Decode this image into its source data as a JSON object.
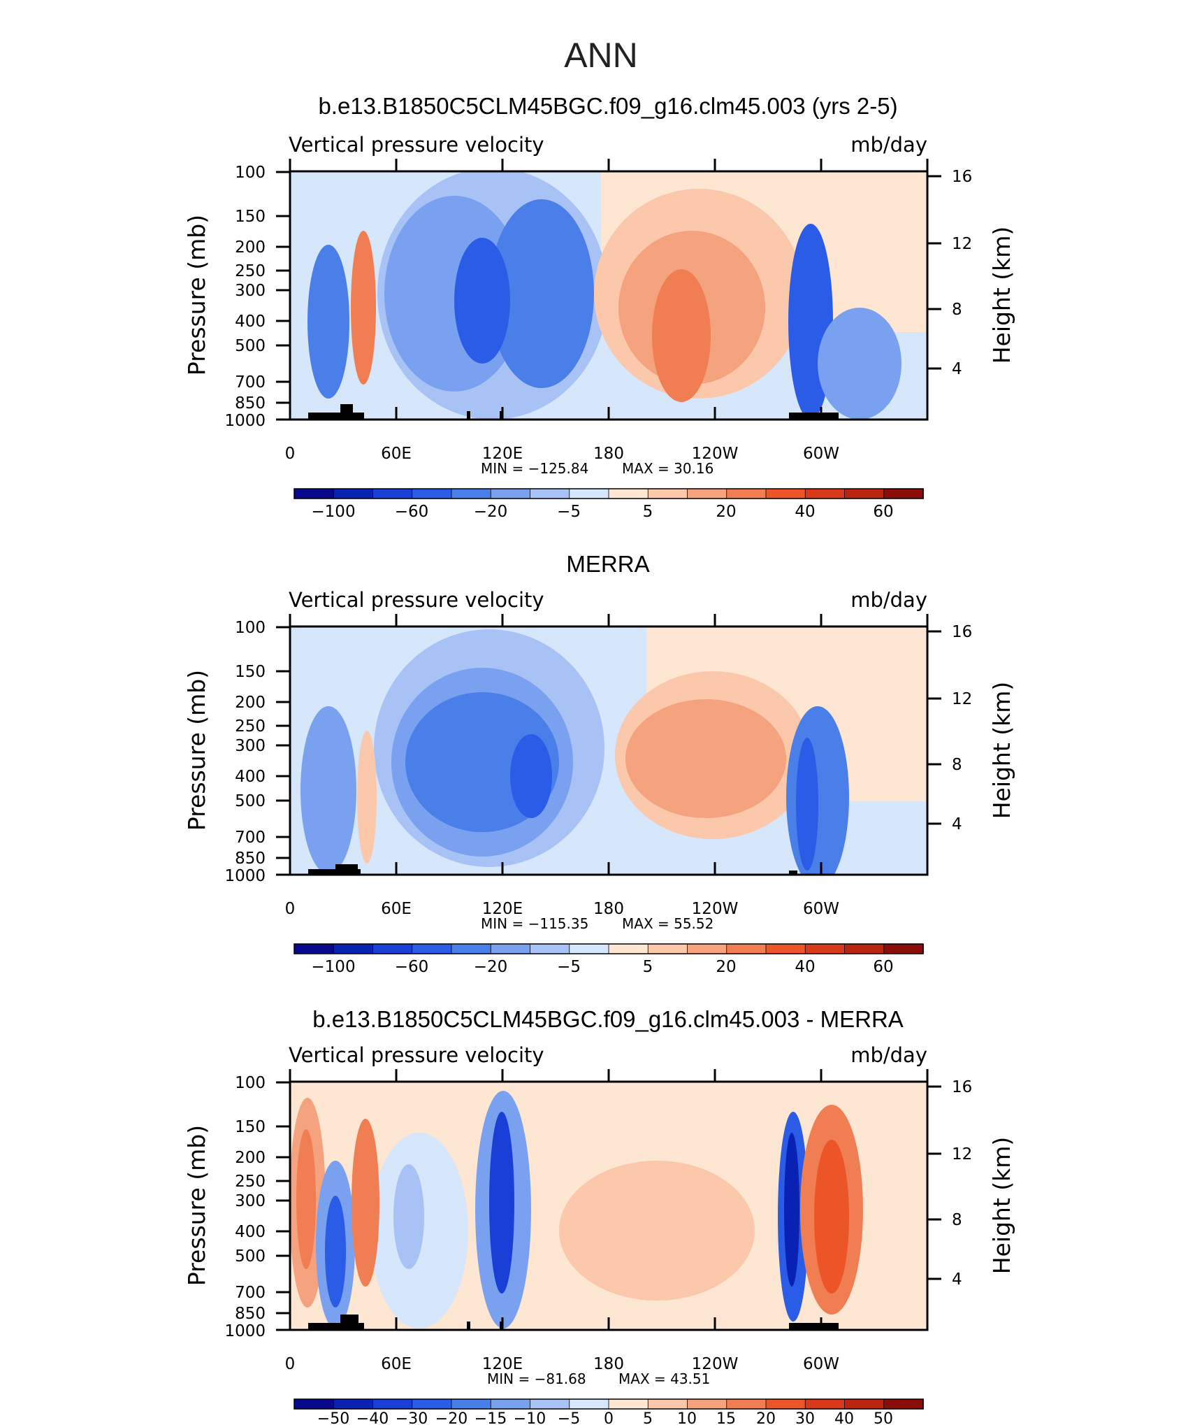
{
  "figure_title": "ANN",
  "chart_data": [
    {
      "type": "heatmap",
      "title": "b.e13.B1850C5CLM45BGC.f09_g16.clm45.003 (yrs 2-5)",
      "subtitle_left": "Vertical pressure velocity",
      "subtitle_right": "mb/day",
      "ylabel": "Pressure (mb)",
      "ylabel_right": "Height (km)",
      "x_ticks": [
        "0",
        "60E",
        "120E",
        "180",
        "120W",
        "60W"
      ],
      "y_ticks": [
        "100",
        "150",
        "200",
        "250",
        "300",
        "400",
        "500",
        "700",
        "850",
        "1000"
      ],
      "y_ticks_right": [
        "16",
        "12",
        "8",
        "4"
      ],
      "xlim": [
        0,
        360
      ],
      "ylim": [
        1000,
        100
      ],
      "y_scale": "log",
      "min_label": "MIN = −125.84",
      "max_label": "MAX = 30.16",
      "colorbar_labels": [
        "−100",
        "−60",
        "−20",
        "−5",
        "5",
        "20",
        "40",
        "60"
      ],
      "colorbar_levels": [
        -120,
        -100,
        -80,
        -60,
        -40,
        -20,
        -10,
        -5,
        0,
        5,
        10,
        20,
        30,
        40,
        50,
        60
      ],
      "min": -125.84,
      "max": 30.16
    },
    {
      "type": "heatmap",
      "title": "MERRA",
      "subtitle_left": "Vertical pressure velocity",
      "subtitle_right": "mb/day",
      "ylabel": "Pressure (mb)",
      "ylabel_right": "Height (km)",
      "x_ticks": [
        "0",
        "60E",
        "120E",
        "180",
        "120W",
        "60W"
      ],
      "y_ticks": [
        "100",
        "150",
        "200",
        "250",
        "300",
        "400",
        "500",
        "700",
        "850",
        "1000"
      ],
      "y_ticks_right": [
        "16",
        "12",
        "8",
        "4"
      ],
      "xlim": [
        0,
        360
      ],
      "ylim": [
        1000,
        100
      ],
      "y_scale": "log",
      "min_label": "MIN = −115.35",
      "max_label": "MAX = 55.52",
      "colorbar_labels": [
        "−100",
        "−60",
        "−20",
        "−5",
        "5",
        "20",
        "40",
        "60"
      ],
      "colorbar_levels": [
        -120,
        -100,
        -80,
        -60,
        -40,
        -20,
        -10,
        -5,
        0,
        5,
        10,
        20,
        30,
        40,
        50,
        60
      ],
      "min": -115.35,
      "max": 55.52
    },
    {
      "type": "heatmap",
      "title": "b.e13.B1850C5CLM45BGC.f09_g16.clm45.003 - MERRA",
      "subtitle_left": "Vertical pressure velocity",
      "subtitle_right": "mb/day",
      "ylabel": "Pressure (mb)",
      "ylabel_right": "Height (km)",
      "x_ticks": [
        "0",
        "60E",
        "120E",
        "180",
        "120W",
        "60W"
      ],
      "y_ticks": [
        "100",
        "150",
        "200",
        "250",
        "300",
        "400",
        "500",
        "700",
        "850",
        "1000"
      ],
      "y_ticks_right": [
        "16",
        "12",
        "8",
        "4"
      ],
      "xlim": [
        0,
        360
      ],
      "ylim": [
        1000,
        100
      ],
      "y_scale": "log",
      "min_label": "MIN = −81.68",
      "max_label": "MAX = 43.51",
      "colorbar_labels": [
        "−50",
        "−40",
        "−30",
        "−20",
        "−15",
        "−10",
        "−5",
        "0",
        "5",
        "10",
        "15",
        "20",
        "30",
        "40",
        "50"
      ],
      "colorbar_levels": [
        -60,
        -50,
        -40,
        -30,
        -20,
        -15,
        -10,
        -5,
        0,
        5,
        10,
        15,
        20,
        30,
        40,
        50,
        60
      ],
      "min": -81.68,
      "max": 43.51
    }
  ],
  "colors": {
    "colorbar": [
      "#08088c",
      "#0a22b4",
      "#1a3fd6",
      "#2a5ce8",
      "#4a7ee8",
      "#7aa0f0",
      "#a9c2f6",
      "#d6e6fb",
      "#fde6d2",
      "#fbc8ac",
      "#f5a27f",
      "#f07e52",
      "#eb5528",
      "#d8391a",
      "#b8240f",
      "#8a0d0a"
    ],
    "land": "#000000"
  }
}
